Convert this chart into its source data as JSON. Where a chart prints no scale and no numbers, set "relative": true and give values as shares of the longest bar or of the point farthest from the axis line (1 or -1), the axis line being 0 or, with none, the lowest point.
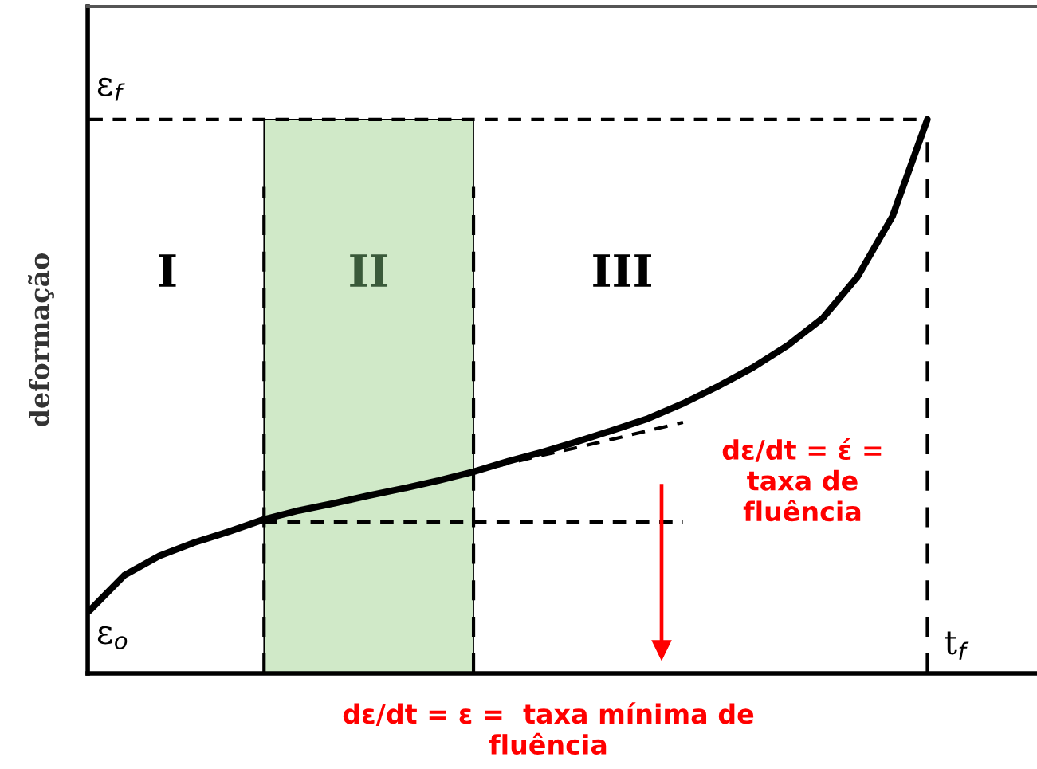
{
  "chart_data": {
    "type": "line",
    "relative": true,
    "ylabel": "deformação",
    "categories": [
      null,
      null,
      null,
      null,
      null,
      null,
      null,
      null,
      null,
      null,
      null,
      null,
      null,
      null,
      null,
      null,
      null,
      null,
      null,
      null,
      null,
      null,
      null,
      null,
      null,
      null,
      null,
      null
    ],
    "series": [
      {
        "color": "#000000",
        "line_style": "solid",
        "values": [
          0.113,
          0.177,
          0.212,
          0.236,
          0.256,
          0.278,
          0.294,
          0.307,
          0.321,
          0.334,
          0.348,
          0.364,
          0.383,
          0.4,
          0.419,
          0.439,
          0.46,
          0.487,
          0.518,
          0.552,
          0.592,
          0.641,
          0.716,
          0.825,
          1.0,
          null,
          null,
          null
        ]
      },
      {
        "color": "#000000",
        "line_style": "dashed",
        "values": [
          null,
          null,
          null,
          null,
          null,
          null,
          null,
          null,
          null,
          null,
          null,
          0.364,
          0.379,
          0.394,
          0.408,
          0.423,
          0.438,
          0.453,
          null,
          null,
          null,
          null,
          null,
          null,
          null,
          null,
          null,
          null
        ]
      },
      {
        "color": "#000000",
        "line_style": "dashed",
        "values": [
          1.0,
          1.0,
          1.0,
          1.0,
          1.0,
          1.0,
          1.0,
          1.0,
          1.0,
          1.0,
          1.0,
          1.0,
          1.0,
          1.0,
          1.0,
          1.0,
          1.0,
          1.0,
          1.0,
          1.0,
          1.0,
          1.0,
          1.0,
          1.0,
          1.0,
          null,
          null,
          null
        ]
      },
      {
        "color": "#000000",
        "line_style": "dashed",
        "values": [
          null,
          null,
          null,
          null,
          null,
          0.273,
          0.273,
          0.273,
          0.273,
          0.273,
          0.273,
          0.273,
          0.273,
          0.273,
          0.273,
          0.273,
          0.273,
          0.273,
          null,
          null,
          null,
          null,
          null,
          null,
          null,
          null,
          null,
          null
        ]
      }
    ],
    "annotations": [
      "ε$_{f}$",
      "ε$_{o}$",
      "t$_{f}$",
      "I",
      "II",
      "III",
      "dε/dt = έ =\ntaxa de\nfluência",
      "dε/dt = ε =  taxa mínima de\nfluência"
    ]
  }
}
